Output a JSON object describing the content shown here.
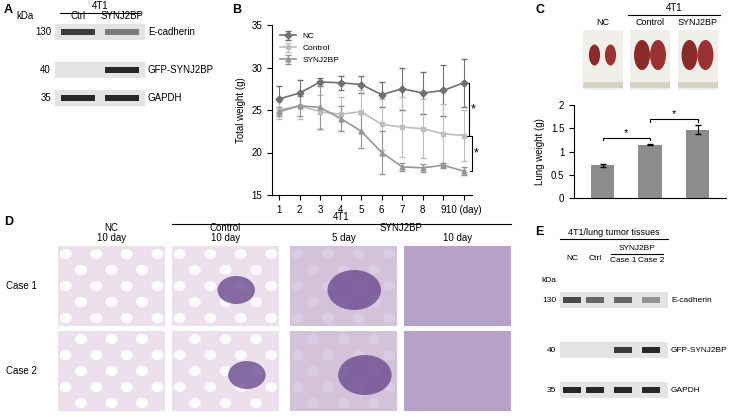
{
  "panel_labels": [
    "A",
    "B",
    "C",
    "D",
    "E"
  ],
  "panel_A": {
    "header": "4T1",
    "lanes": [
      "Ctrl",
      "SYNJ2BP"
    ],
    "unit": "kDa",
    "rows": [
      {
        "kda": "130",
        "label": "E-cadherin",
        "signal": [
          0.9,
          0.6
        ]
      },
      {
        "kda": "40",
        "label": "GFP-SYNJ2BP",
        "signal": [
          0.0,
          1.0
        ]
      },
      {
        "kda": "35",
        "label": "GAPDH",
        "signal": [
          1.0,
          1.0
        ]
      }
    ]
  },
  "chart_data": [
    {
      "type": "line",
      "y_label": "Total weight (g)",
      "x": [
        1,
        2,
        3,
        4,
        5,
        6,
        7,
        8,
        9,
        10
      ],
      "xlim": [
        0.65,
        10.4
      ],
      "xticks": [
        1,
        2,
        3,
        4,
        5,
        6,
        7,
        8,
        9,
        {
          "value": 10,
          "label": "10 (day)"
        }
      ],
      "ylim": [
        15,
        35
      ],
      "yticks": [
        15,
        20,
        25,
        30,
        35
      ],
      "legend": "upper left",
      "annotations": [
        "*",
        "*"
      ],
      "series": [
        {
          "name": "NC",
          "color": "#707070",
          "marker": "diamond",
          "values": [
            26.3,
            27.0,
            28.3,
            28.2,
            28.0,
            26.8,
            27.5,
            27.0,
            27.3,
            28.2
          ],
          "error": [
            1.5,
            1.5,
            0.5,
            0.8,
            1.0,
            1.5,
            2.5,
            2.5,
            3.0,
            2.8
          ]
        },
        {
          "name": "Control",
          "color": "#bdbdbd",
          "marker": "square",
          "values": [
            25.0,
            25.5,
            24.8,
            24.5,
            24.8,
            23.3,
            23.0,
            22.8,
            22.2,
            22.0
          ],
          "error": [
            1.0,
            1.5,
            2.0,
            2.0,
            2.5,
            3.0,
            3.5,
            3.5,
            3.5,
            3.0
          ]
        },
        {
          "name": "SYNJ2BP",
          "color": "#969696",
          "marker": "triangle",
          "values": [
            24.8,
            25.5,
            25.3,
            24.0,
            22.5,
            20.0,
            18.3,
            18.2,
            18.5,
            17.8
          ],
          "error": [
            0.5,
            1.2,
            2.5,
            1.5,
            2.0,
            2.5,
            0.5,
            0.5,
            0.3,
            0.5
          ]
        }
      ]
    },
    {
      "type": "bar",
      "y_label": "Lung weight (g)",
      "categories": [
        "NC",
        "Control",
        "SYNJ2BP"
      ],
      "values": [
        0.7,
        1.15,
        1.47
      ],
      "error": [
        0.03,
        0.02,
        0.1
      ],
      "color": "#8c8c8c",
      "ylim": [
        0,
        2
      ],
      "yticks": [
        0,
        0.5,
        1,
        1.5,
        2
      ],
      "tick_labels": "y",
      "annotations": [
        "*",
        "*"
      ]
    }
  ],
  "panel_C_photos": {
    "header": "4T1",
    "labels": [
      "NC",
      "Control",
      "SYNJ2BP"
    ],
    "header_spans": [
      "Control",
      "SYNJ2BP"
    ]
  },
  "panel_D": {
    "header": "4T1",
    "header_spans": [
      "Control",
      "SYNJ2BP"
    ],
    "groups": [
      {
        "label": "NC",
        "columns": [
          "10 day"
        ]
      },
      {
        "label": "Control",
        "columns": [
          "10 day"
        ]
      },
      {
        "label": "SYNJ2BP",
        "columns": [
          "5 day",
          "10 day"
        ]
      }
    ],
    "rows": [
      "Case 1",
      "Case 2"
    ]
  },
  "panel_E": {
    "header": "4T1/lung tumor tissues",
    "unit": "kDa",
    "lanes": [
      "NC",
      "Ctrl",
      "Case 1",
      "Case 2"
    ],
    "lane_group": {
      "label": "SYNJ2BP",
      "lanes": [
        "Case 1",
        "Case 2"
      ]
    },
    "rows": [
      {
        "kda": "130",
        "label": "E-cadherin",
        "signal": [
          0.85,
          0.7,
          0.7,
          0.5
        ]
      },
      {
        "kda": "40",
        "label": "GFP-SYNJ2BP",
        "signal": [
          0.0,
          0.0,
          0.9,
          1.0
        ]
      },
      {
        "kda": "35",
        "label": "GAPDH",
        "signal": [
          1.0,
          1.0,
          1.0,
          1.0
        ]
      }
    ]
  }
}
